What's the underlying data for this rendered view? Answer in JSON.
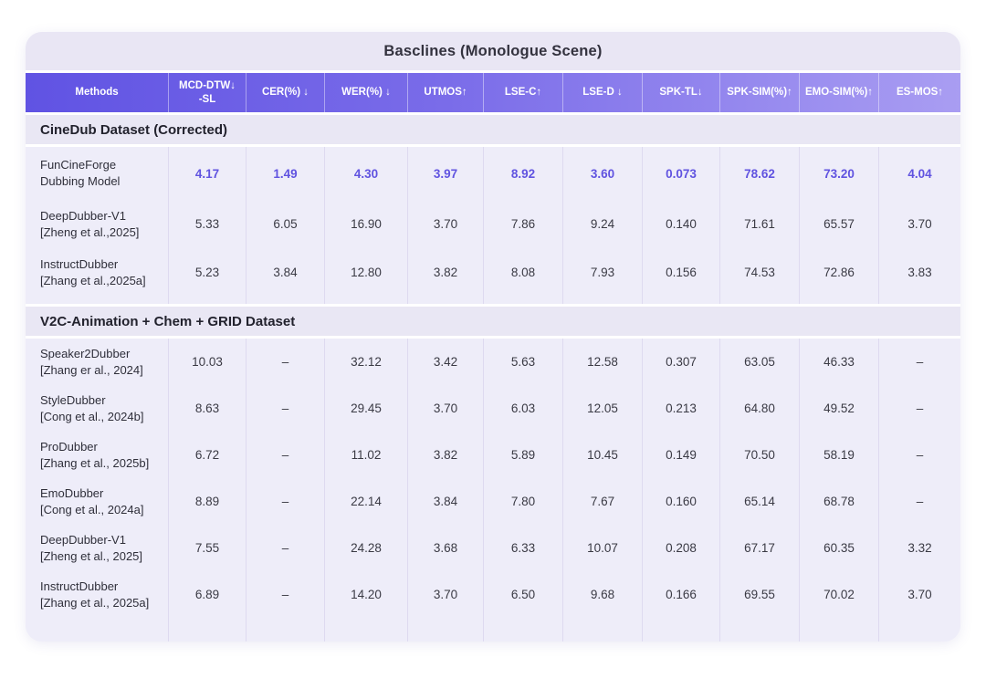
{
  "colors": {
    "header_gradient_start": "#6053e3",
    "header_gradient_end": "#a99df2",
    "highlight_value": "#6053e0",
    "card_background": "#eeedf9",
    "band_background": "#e9e6f4"
  },
  "chart_data": {
    "type": "table",
    "title": "Basclines (Monologue Scene)",
    "columns": [
      {
        "label": "Methods"
      },
      {
        "label": "MCD-DTW↓\n-SL"
      },
      {
        "label": "CER(%) ↓"
      },
      {
        "label": "WER(%) ↓"
      },
      {
        "label": "UTMOS↑"
      },
      {
        "label": "LSE-C↑"
      },
      {
        "label": "LSE-D ↓"
      },
      {
        "label": "SPK-TL↓"
      },
      {
        "label": "SPK-SIM(%)↑"
      },
      {
        "label": "EMO-SIM(%)↑"
      },
      {
        "label": "ES-MOS↑"
      }
    ],
    "sections": [
      {
        "heading": "CineDub Dataset (Corrected)",
        "rows": [
          {
            "method": "FunCineForge\nDubbing Model",
            "highlight": true,
            "values": [
              "4.17",
              "1.49",
              "4.30",
              "3.97",
              "8.92",
              "3.60",
              "0.073",
              "78.62",
              "73.20",
              "4.04"
            ]
          },
          {
            "method": "DeepDubber-V1\n[Zheng et al.,2025]",
            "highlight": false,
            "values": [
              "5.33",
              "6.05",
              "16.90",
              "3.70",
              "7.86",
              "9.24",
              "0.140",
              "71.61",
              "65.57",
              "3.70"
            ]
          },
          {
            "method": "InstructDubber\n[Zhang et al.,2025a]",
            "highlight": false,
            "values": [
              "5.23",
              "3.84",
              "12.80",
              "3.82",
              "8.08",
              "7.93",
              "0.156",
              "74.53",
              "72.86",
              "3.83"
            ]
          }
        ]
      },
      {
        "heading": "V2C-Animation + Chem + GRID Dataset",
        "rows": [
          {
            "method": "Speaker2Dubber\n[Zhang er al., 2024]",
            "highlight": false,
            "values": [
              "10.03",
              "–",
              "32.12",
              "3.42",
              "5.63",
              "12.58",
              "0.307",
              "63.05",
              "46.33",
              "–"
            ]
          },
          {
            "method": "StyleDubber\n[Cong et al., 2024b]",
            "highlight": false,
            "values": [
              "8.63",
              "–",
              "29.45",
              "3.70",
              "6.03",
              "12.05",
              "0.213",
              "64.80",
              "49.52",
              "–"
            ]
          },
          {
            "method": "ProDubber\n[Zhang et al., 2025b]",
            "highlight": false,
            "values": [
              "6.72",
              "–",
              "11.02",
              "3.82",
              "5.89",
              "10.45",
              "0.149",
              "70.50",
              "58.19",
              "–"
            ]
          },
          {
            "method": "EmoDubber\n[Cong et al., 2024a]",
            "highlight": false,
            "values": [
              "8.89",
              "–",
              "22.14",
              "3.84",
              "7.80",
              "7.67",
              "0.160",
              "65.14",
              "68.78",
              "–"
            ]
          },
          {
            "method": "DeepDubber-V1\n[Zheng et al., 2025]",
            "highlight": false,
            "values": [
              "7.55",
              "–",
              "24.28",
              "3.68",
              "6.33",
              "10.07",
              "0.208",
              "67.17",
              "60.35",
              "3.32"
            ]
          },
          {
            "method": "InstructDubber\n[Zhang et al., 2025a]",
            "highlight": false,
            "values": [
              "6.89",
              "–",
              "14.20",
              "3.70",
              "6.50",
              "9.68",
              "0.166",
              "69.55",
              "70.02",
              "3.70"
            ]
          }
        ]
      }
    ]
  }
}
